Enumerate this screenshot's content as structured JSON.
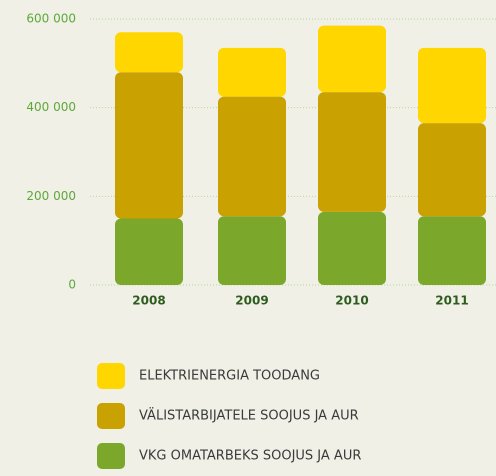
{
  "chart_data": {
    "type": "stacked_bar",
    "categories": [
      "2008",
      "2009",
      "2010",
      "2011"
    ],
    "series": [
      {
        "name": "VKG OMATARBEKS SOOJUS JA AUR",
        "color": "#7ba72b",
        "values": [
          150000,
          155000,
          165000,
          155000
        ]
      },
      {
        "name": "VÄLISTARBIJATELE SOOJUS JA AUR",
        "color": "#c9a100",
        "values": [
          330000,
          270000,
          270000,
          210000
        ]
      },
      {
        "name": "ELEKTRIENERGIA TOODANG",
        "color": "#ffd600",
        "values": [
          90000,
          110000,
          150000,
          170000
        ]
      }
    ],
    "ylim": [
      0,
      600000
    ],
    "yticks": [
      0,
      {
        "value": 200000,
        "label": "200 000"
      },
      {
        "value": 400000,
        "label": "400 000"
      },
      {
        "value": 600000,
        "label": "600 000"
      }
    ],
    "grid": true
  }
}
